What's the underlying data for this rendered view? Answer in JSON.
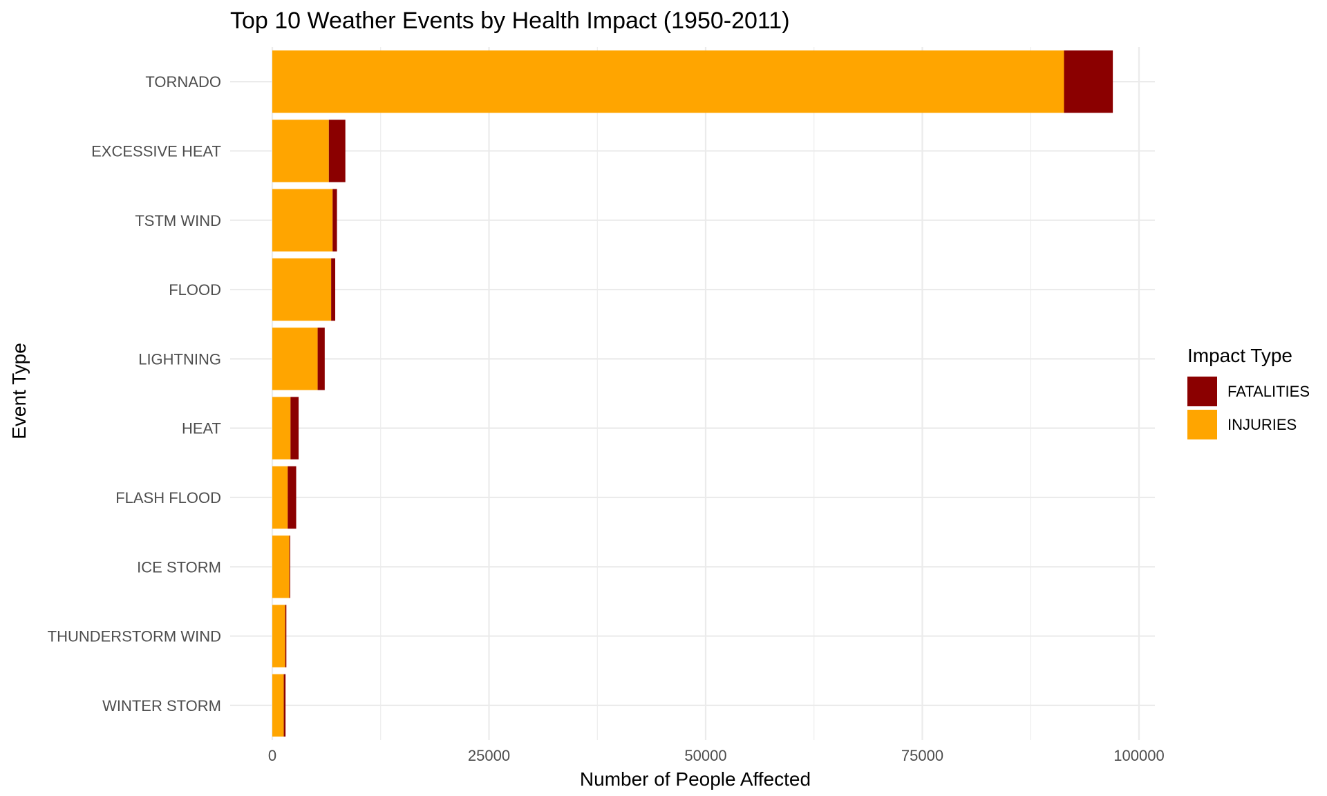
{
  "chart_data": {
    "type": "bar",
    "orientation": "horizontal",
    "stacked": true,
    "title": "Top 10 Weather Events by Health Impact (1950-2011)",
    "xlabel": "Number of People Affected",
    "ylabel": "Event Type",
    "xlim": [
      0,
      100000
    ],
    "xticks": [
      0,
      25000,
      50000,
      75000,
      100000
    ],
    "xtick_labels": [
      "0",
      "25000",
      "50000",
      "75000",
      "100000"
    ],
    "grid": true,
    "legend": {
      "title": "Impact Type",
      "position": "right",
      "entries": [
        "FATALITIES",
        "INJURIES"
      ]
    },
    "categories": [
      "TORNADO",
      "EXCESSIVE HEAT",
      "TSTM WIND",
      "FLOOD",
      "LIGHTNING",
      "HEAT",
      "FLASH FLOOD",
      "ICE STORM",
      "THUNDERSTORM WIND",
      "WINTER STORM"
    ],
    "series": [
      {
        "name": "INJURIES",
        "color": "#FFA500",
        "values": [
          91346,
          6525,
          6957,
          6789,
          5230,
          2100,
          1777,
          1975,
          1488,
          1321
        ]
      },
      {
        "name": "FATALITIES",
        "color": "#8B0000",
        "values": [
          5633,
          1903,
          504,
          470,
          816,
          937,
          978,
          89,
          133,
          206
        ]
      }
    ]
  }
}
